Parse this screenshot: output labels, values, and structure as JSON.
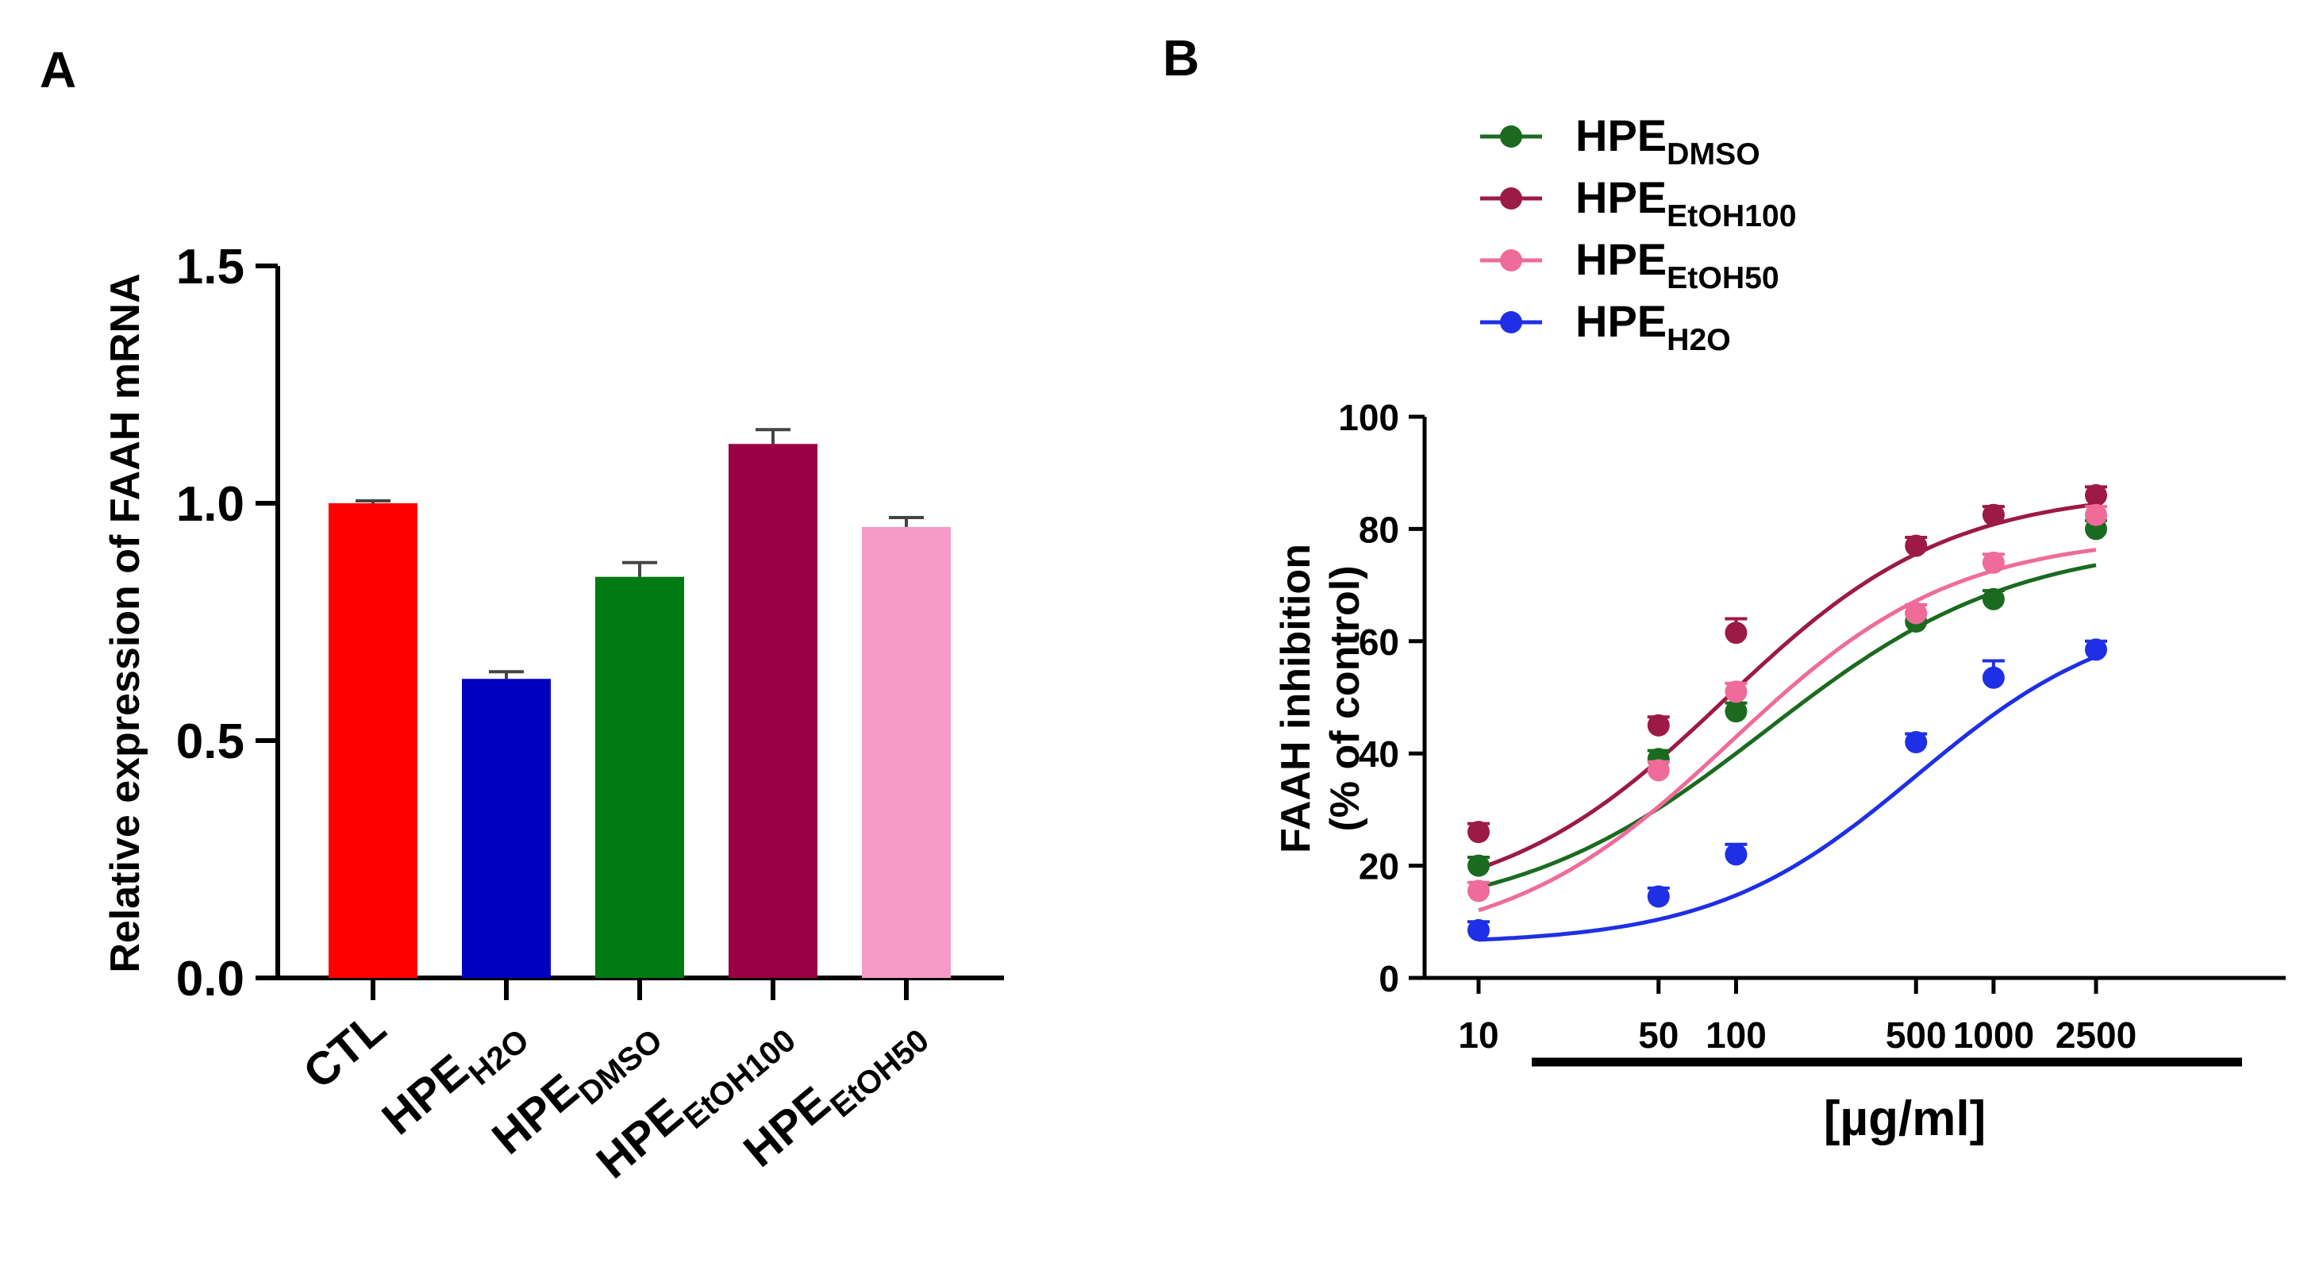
{
  "chart_data": [
    {
      "panel_label": "A",
      "type": "bar",
      "ylabel": "Relative expression of FAAH mRNA",
      "ylim": [
        0,
        1.5
      ],
      "yticks": [
        "0.0",
        "0.5",
        "1.0",
        "1.5"
      ],
      "categories": [
        {
          "base": "CTL",
          "sub": ""
        },
        {
          "base": "HPE",
          "sub": "H2O"
        },
        {
          "base": "HPE",
          "sub": "DMSO"
        },
        {
          "base": "HPE",
          "sub": "EtOH100"
        },
        {
          "base": "HPE",
          "sub": "EtOH50"
        }
      ],
      "values": [
        1.0,
        0.63,
        0.845,
        1.125,
        0.95
      ],
      "errors": [
        0.005,
        0.015,
        0.03,
        0.03,
        0.02
      ],
      "colors": [
        "#ff0000",
        "#0000c0",
        "#007a12",
        "#990044",
        "#f59ac6"
      ]
    },
    {
      "panel_label": "B",
      "type": "scatter",
      "ylabel_line1": "FAAH inhibition",
      "ylabel_line2": "(% of control)",
      "xlabel": "[µg/ml]",
      "x_scale": "log",
      "xlim": [
        5,
        4000
      ],
      "ylim": [
        0,
        100
      ],
      "xticks": [
        "10",
        "50",
        "100",
        "500",
        "1000",
        "2500"
      ],
      "yticks": [
        "0",
        "20",
        "40",
        "60",
        "80",
        "100"
      ],
      "x": [
        10,
        50,
        100,
        500,
        1000,
        2500
      ],
      "legend_position": "top-left",
      "series": [
        {
          "base": "HPE",
          "sub": "DMSO",
          "color": "#1a6b1f",
          "values": [
            20,
            39,
            47.5,
            63.5,
            67.5,
            80
          ],
          "errors": [
            1.5,
            1.5,
            1.5,
            1.5,
            1.5,
            1.5
          ],
          "fit": {
            "bottom": 10,
            "top": 78,
            "ec50": 130,
            "hill": 0.9
          }
        },
        {
          "base": "HPE",
          "sub": "EtOH100",
          "color": "#9c1a45",
          "values": [
            26,
            45,
            61.5,
            77,
            82.5,
            86
          ],
          "errors": [
            1.5,
            1.5,
            2.5,
            1.5,
            1.5,
            1.5
          ],
          "fit": {
            "bottom": 12,
            "top": 87,
            "ec50": 90,
            "hill": 1.0
          }
        },
        {
          "base": "HPE",
          "sub": "EtOH50",
          "color": "#ef6b9a",
          "values": [
            15.5,
            37,
            51,
            65,
            74,
            82.5
          ],
          "errors": [
            1.5,
            1.5,
            1.5,
            1.5,
            1.5,
            1.5
          ],
          "fit": {
            "bottom": 5,
            "top": 79,
            "ec50": 95,
            "hill": 1.0
          }
        },
        {
          "base": "HPE",
          "sub": "H2O",
          "color": "#1f2fe6",
          "values": [
            8.5,
            14.5,
            22,
            42,
            53.5,
            58.5
          ],
          "errors": [
            1.5,
            1.5,
            1.8,
            1.5,
            3,
            1.5
          ],
          "fit": {
            "bottom": 6,
            "top": 66,
            "ec50": 500,
            "hill": 1.1
          }
        }
      ]
    }
  ]
}
